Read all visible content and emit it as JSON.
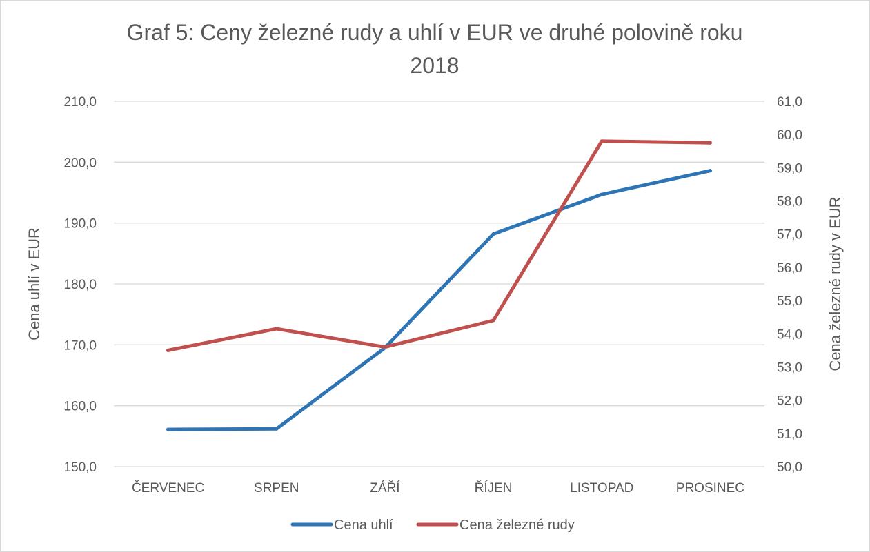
{
  "chart_data": {
    "type": "line",
    "title_line1": "Graf 5: Ceny železné rudy a uhlí v EUR ve druhé polovině roku",
    "title_line2": "2018",
    "categories": [
      "ČERVENEC",
      "SRPEN",
      "ZÁŘÍ",
      "ŘÍJEN",
      "LISTOPAD",
      "PROSINEC"
    ],
    "y_left": {
      "label": "Cena uhlí v EUR",
      "range": [
        150,
        210
      ],
      "ticks": [
        "150,0",
        "160,0",
        "170,0",
        "180,0",
        "190,0",
        "200,0",
        "210,0"
      ]
    },
    "y_right": {
      "label": "Cena železné rudy v EUR",
      "range": [
        50,
        61
      ],
      "ticks": [
        "50,0",
        "51,0",
        "52,0",
        "53,0",
        "54,0",
        "55,0",
        "56,0",
        "57,0",
        "58,0",
        "59,0",
        "60,0",
        "61,0"
      ]
    },
    "series": [
      {
        "name": "Cena uhlí",
        "axis": "left",
        "color": "#2E75B6",
        "values": [
          156.1,
          156.2,
          169.5,
          188.2,
          194.7,
          198.6
        ]
      },
      {
        "name": "Cena železné rudy",
        "axis": "right",
        "color": "#C0504D",
        "values": [
          53.5,
          54.15,
          53.6,
          54.4,
          59.8,
          59.75
        ]
      }
    ],
    "grid": true,
    "legend_position": "bottom"
  }
}
